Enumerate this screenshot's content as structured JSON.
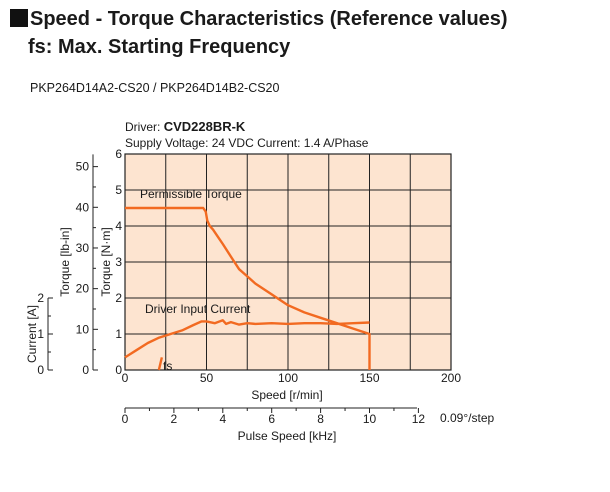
{
  "header": {
    "title": "Speed - Torque Characteristics (Reference values)",
    "subtitle": "fs: Max. Starting Frequency"
  },
  "model": "PKP264D14A2-CS20 / PKP264D14B2-CS20",
  "colors": {
    "plot_bg": "#fde4d0",
    "curve": "#f26a21",
    "grid": "#222222",
    "text": "#1a1a1a"
  },
  "chart_data": {
    "type": "line",
    "driver_label": "Driver:",
    "driver_name": "CVD228BR-K",
    "conditions": "Supply Voltage: 24 VDC  Current: 1.4 A/Phase",
    "xlabel": "Speed [r/min]",
    "xlim": [
      0,
      200
    ],
    "x_ticks": [
      "0",
      "50",
      "100",
      "150",
      "200"
    ],
    "x2label": "Pulse Speed [kHz]",
    "x2_ticks": [
      "0",
      "2",
      "4",
      "6",
      "8",
      "10",
      "12"
    ],
    "x2_unit": "0.09°/step",
    "ylabel_nm": "Torque [N·m]",
    "ylim": [
      0,
      6
    ],
    "y_ticks_nm": [
      "0",
      "1",
      "2",
      "3",
      "4",
      "5",
      "6"
    ],
    "ylabel_lbin": "Torque [lb-in]",
    "y_ticks_lbin": [
      "0",
      "10",
      "20",
      "30",
      "40",
      "50"
    ],
    "ylabel_current": "Current [A]",
    "y_ticks_current": [
      "0",
      "1",
      "2"
    ],
    "grid": true,
    "series": [
      {
        "name": "Permissible Torque",
        "x": [
          0,
          4,
          48,
          49.5,
          50.5,
          52,
          54,
          57,
          60,
          65,
          70,
          75,
          80,
          90,
          100,
          110,
          120,
          130,
          140,
          150,
          150
        ],
        "y": [
          4.5,
          4.5,
          4.5,
          4.4,
          4.15,
          4.0,
          3.9,
          3.7,
          3.5,
          3.15,
          2.8,
          2.6,
          2.4,
          2.1,
          1.8,
          1.6,
          1.45,
          1.3,
          1.15,
          1.0,
          0
        ]
      },
      {
        "name": "Driver Input Current",
        "x": [
          0,
          7,
          14,
          21,
          28,
          35,
          42,
          47,
          50,
          55,
          60,
          62,
          65,
          70,
          75,
          80,
          90,
          100,
          110,
          120,
          130,
          140,
          150
        ],
        "y": [
          0.35,
          0.55,
          0.75,
          0.9,
          1.0,
          1.1,
          1.25,
          1.35,
          1.35,
          1.3,
          1.38,
          1.28,
          1.33,
          1.26,
          1.3,
          1.28,
          1.3,
          1.28,
          1.3,
          1.3,
          1.28,
          1.3,
          1.32
        ]
      }
    ],
    "fs_label": "fs",
    "fs_x": 22,
    "fs_y": 0.35
  }
}
